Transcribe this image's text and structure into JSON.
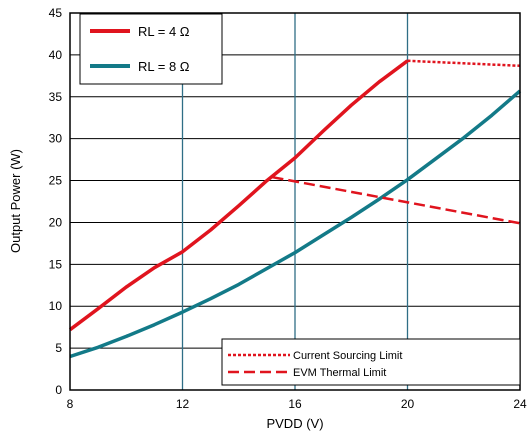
{
  "chart_data": {
    "type": "line",
    "xlabel": "PVDD (V)",
    "ylabel": "Output Power (W)",
    "xlim": [
      8,
      24
    ],
    "ylim": [
      0,
      45
    ],
    "x_ticks": [
      8,
      12,
      16,
      20,
      24
    ],
    "y_ticks": [
      0,
      5,
      10,
      15,
      20,
      25,
      30,
      35,
      40,
      45
    ],
    "grid": "on",
    "colors": {
      "rl4": "#e0141e",
      "rl8": "#137a88",
      "grid_vertical": "#2f6e86",
      "grid_horizontal": "#000000"
    },
    "series": [
      {
        "name": "RL = 4 Ω",
        "style": "solid",
        "x": [
          8,
          9,
          10,
          11,
          12,
          13,
          14,
          15,
          16,
          17,
          18,
          19,
          20
        ],
        "y": [
          7.2,
          9.7,
          12.3,
          14.6,
          16.5,
          19.1,
          22.0,
          25.0,
          27.7,
          30.9,
          34.0,
          36.8,
          39.3
        ]
      },
      {
        "name": "RL = 8 Ω",
        "style": "solid",
        "x": [
          8,
          9,
          10,
          11,
          12,
          13,
          14,
          15,
          16,
          17,
          18,
          19,
          20,
          21,
          22,
          23,
          24
        ],
        "y": [
          4.0,
          5.1,
          6.4,
          7.8,
          9.3,
          10.9,
          12.6,
          14.5,
          16.4,
          18.5,
          20.6,
          22.8,
          25.1,
          27.6,
          30.1,
          32.8,
          35.7
        ]
      },
      {
        "name": "Current Sourcing Limit",
        "style": "dotted",
        "x": [
          20,
          24
        ],
        "y": [
          39.3,
          38.7
        ]
      },
      {
        "name": "EVM Thermal Limit",
        "style": "dashed",
        "x": [
          15.2,
          24
        ],
        "y": [
          25.4,
          19.9
        ]
      }
    ],
    "legend": {
      "top": [
        "RL = 4 Ω",
        "RL = 8 Ω"
      ],
      "top_placement": "top-left",
      "bottom": [
        "Current Sourcing Limit",
        "EVM Thermal Limit"
      ],
      "bottom_placement": "bottom-right"
    }
  }
}
